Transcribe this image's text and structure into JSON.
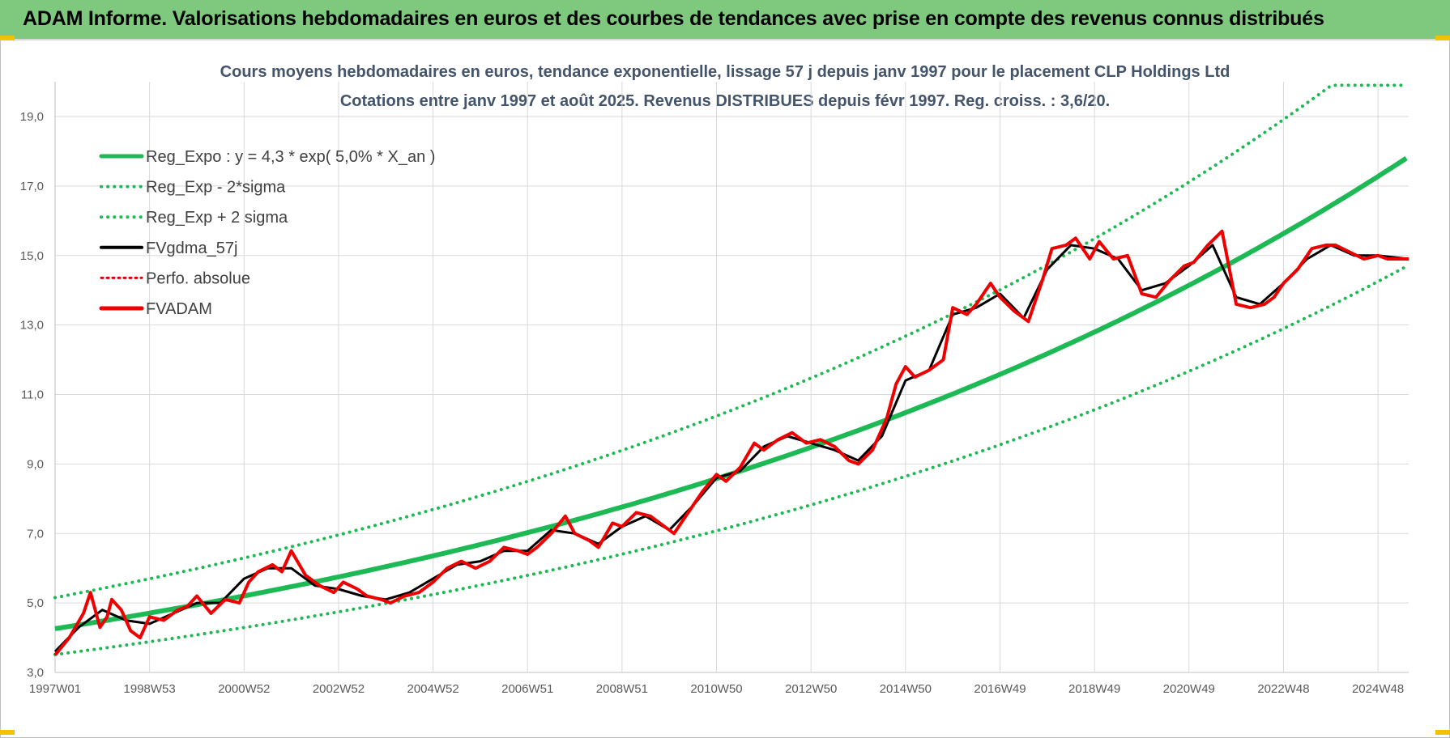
{
  "header": {
    "banner_text": "ADAM Informe. Valorisations hebdomadaires en euros et des courbes de tendances avec prise en compte des revenus connus distribués"
  },
  "colors": {
    "banner": "#7fc97f",
    "reg_expo": "#1db954",
    "reg_sigma": "#1db954",
    "fvgdma": "#000000",
    "perfo": "#e00000",
    "fvadam": "#ee0000",
    "grid": "#d9d9d9"
  },
  "chart_data": {
    "type": "line",
    "title": "Cours moyens hebdomadaires en euros, tendance exponentielle, lissage 57 j depuis janv 1997 pour le placement CLP Holdings Ltd",
    "subtitle": "Cotations entre janv 1997 et août 2025.  Revenus DISTRIBUES depuis févr 1997.  Reg. croiss. : 3,6/20.",
    "xlabel": "",
    "ylabel": "",
    "x_range": [
      1997.0,
      2025.65
    ],
    "ylim": [
      3.0,
      19.9
    ],
    "y_ticks": [
      "3,0",
      "5,0",
      "7,0",
      "9,0",
      "11,0",
      "13,0",
      "15,0",
      "17,0",
      "19,0"
    ],
    "x_ticks": [
      {
        "label": "1997W01",
        "x": 1997.0
      },
      {
        "label": "1998W53",
        "x": 1999.0
      },
      {
        "label": "2000W52",
        "x": 2001.0
      },
      {
        "label": "2002W52",
        "x": 2003.0
      },
      {
        "label": "2004W52",
        "x": 2005.0
      },
      {
        "label": "2006W51",
        "x": 2007.0
      },
      {
        "label": "2008W51",
        "x": 2009.0
      },
      {
        "label": "2010W50",
        "x": 2011.0
      },
      {
        "label": "2012W50",
        "x": 2013.0
      },
      {
        "label": "2014W50",
        "x": 2015.0
      },
      {
        "label": "2016W49",
        "x": 2017.0
      },
      {
        "label": "2018W49",
        "x": 2019.0
      },
      {
        "label": "2020W49",
        "x": 2021.0
      },
      {
        "label": "2022W48",
        "x": 2023.0
      },
      {
        "label": "2024W48",
        "x": 2025.0
      }
    ],
    "grid": true,
    "legend_position": "top-left",
    "legend": [
      {
        "key": "reg_expo",
        "label": "Reg_Expo : y = 4,3 * exp( 5,0% *  X_an )",
        "style": "solid-thick"
      },
      {
        "key": "reg_minus",
        "label": "Reg_Exp - 2*sigma",
        "style": "dotted"
      },
      {
        "key": "reg_plus",
        "label": "Reg_Exp + 2 sigma",
        "style": "dotted"
      },
      {
        "key": "fvgdma",
        "label": "FVgdma_57j",
        "style": "solid"
      },
      {
        "key": "perfo",
        "label": "Perfo. absolue",
        "style": "dotted"
      },
      {
        "key": "fvadam",
        "label": "FVADAM",
        "style": "solid-thick"
      }
    ],
    "trend": {
      "a": 4.26,
      "b": 0.05,
      "plus_factor": 1.21,
      "minus_factor": 0.825,
      "cap": 19.9
    },
    "series": [
      {
        "name": "FVADAM",
        "x": [
          1997.0,
          1997.3,
          1997.6,
          1997.75,
          1997.95,
          1998.1,
          1998.2,
          1998.4,
          1998.6,
          1998.8,
          1999.0,
          1999.3,
          1999.6,
          1999.8,
          2000.0,
          2000.3,
          2000.6,
          2000.9,
          2001.1,
          2001.3,
          2001.6,
          2001.8,
          2002.0,
          2002.3,
          2002.6,
          2002.9,
          2003.1,
          2003.4,
          2003.6,
          2003.9,
          2004.1,
          2004.4,
          2004.7,
          2005.0,
          2005.3,
          2005.6,
          2005.9,
          2006.2,
          2006.5,
          2006.8,
          2007.0,
          2007.2,
          2007.5,
          2007.8,
          2008.0,
          2008.3,
          2008.5,
          2008.8,
          2009.0,
          2009.3,
          2009.6,
          2009.9,
          2010.1,
          2010.4,
          2010.7,
          2011.0,
          2011.2,
          2011.5,
          2011.8,
          2012.0,
          2012.3,
          2012.6,
          2012.9,
          2013.2,
          2013.5,
          2013.8,
          2014.0,
          2014.3,
          2014.6,
          2014.8,
          2015.0,
          2015.2,
          2015.5,
          2015.8,
          2016.0,
          2016.3,
          2016.5,
          2016.8,
          2017.0,
          2017.3,
          2017.6,
          2017.9,
          2018.1,
          2018.4,
          2018.6,
          2018.9,
          2019.1,
          2019.4,
          2019.7,
          2020.0,
          2020.3,
          2020.6,
          2020.9,
          2021.1,
          2021.4,
          2021.7,
          2022.0,
          2022.3,
          2022.6,
          2022.8,
          2023.0,
          2023.3,
          2023.6,
          2023.9,
          2024.1,
          2024.4,
          2024.7,
          2025.0,
          2025.2,
          2025.4,
          2025.65
        ],
        "values": [
          3.5,
          4.0,
          4.7,
          5.3,
          4.3,
          4.6,
          5.1,
          4.8,
          4.2,
          4.0,
          4.6,
          4.5,
          4.8,
          4.9,
          5.2,
          4.7,
          5.1,
          5.0,
          5.6,
          5.9,
          6.1,
          5.9,
          6.5,
          5.8,
          5.5,
          5.3,
          5.6,
          5.4,
          5.2,
          5.1,
          5.0,
          5.2,
          5.3,
          5.6,
          6.0,
          6.2,
          6.0,
          6.2,
          6.6,
          6.5,
          6.4,
          6.6,
          7.0,
          7.5,
          7.0,
          6.8,
          6.6,
          7.3,
          7.2,
          7.6,
          7.5,
          7.2,
          7.0,
          7.6,
          8.2,
          8.7,
          8.5,
          8.9,
          9.6,
          9.4,
          9.7,
          9.9,
          9.6,
          9.7,
          9.5,
          9.1,
          9.0,
          9.4,
          10.3,
          11.3,
          11.8,
          11.5,
          11.7,
          12.0,
          13.5,
          13.3,
          13.6,
          14.2,
          13.8,
          13.4,
          13.1,
          14.3,
          15.2,
          15.3,
          15.5,
          14.9,
          15.4,
          14.9,
          15.0,
          13.9,
          13.8,
          14.3,
          14.7,
          14.8,
          15.3,
          15.7,
          13.6,
          13.5,
          13.6,
          13.8,
          14.2,
          14.6,
          15.2,
          15.3,
          15.3,
          15.1,
          14.9,
          15.0,
          14.9,
          14.9,
          14.9
        ]
      },
      {
        "name": "FVgdma_57j",
        "x": [
          1997.0,
          1997.5,
          1998.0,
          1998.5,
          1999.0,
          1999.5,
          2000.0,
          2000.5,
          2001.0,
          2001.5,
          2002.0,
          2002.5,
          2003.0,
          2003.5,
          2004.0,
          2004.5,
          2005.0,
          2005.5,
          2006.0,
          2006.5,
          2007.0,
          2007.5,
          2008.0,
          2008.5,
          2009.0,
          2009.5,
          2010.0,
          2010.5,
          2011.0,
          2011.5,
          2012.0,
          2012.5,
          2013.0,
          2013.5,
          2014.0,
          2014.5,
          2015.0,
          2015.5,
          2016.0,
          2016.5,
          2017.0,
          2017.5,
          2018.0,
          2018.5,
          2019.0,
          2019.5,
          2020.0,
          2020.5,
          2021.0,
          2021.5,
          2022.0,
          2022.5,
          2023.0,
          2023.5,
          2024.0,
          2024.5,
          2025.0,
          2025.65
        ],
        "values": [
          3.6,
          4.3,
          4.8,
          4.5,
          4.4,
          4.7,
          5.0,
          5.0,
          5.7,
          6.0,
          6.0,
          5.5,
          5.4,
          5.2,
          5.1,
          5.3,
          5.7,
          6.1,
          6.2,
          6.5,
          6.5,
          7.1,
          7.0,
          6.7,
          7.2,
          7.5,
          7.1,
          7.8,
          8.6,
          8.8,
          9.5,
          9.8,
          9.6,
          9.4,
          9.1,
          9.8,
          11.4,
          11.7,
          13.3,
          13.5,
          13.9,
          13.2,
          14.6,
          15.3,
          15.2,
          14.9,
          14.0,
          14.2,
          14.7,
          15.3,
          13.8,
          13.6,
          14.2,
          14.9,
          15.3,
          15.0,
          15.0,
          14.9
        ]
      }
    ]
  }
}
